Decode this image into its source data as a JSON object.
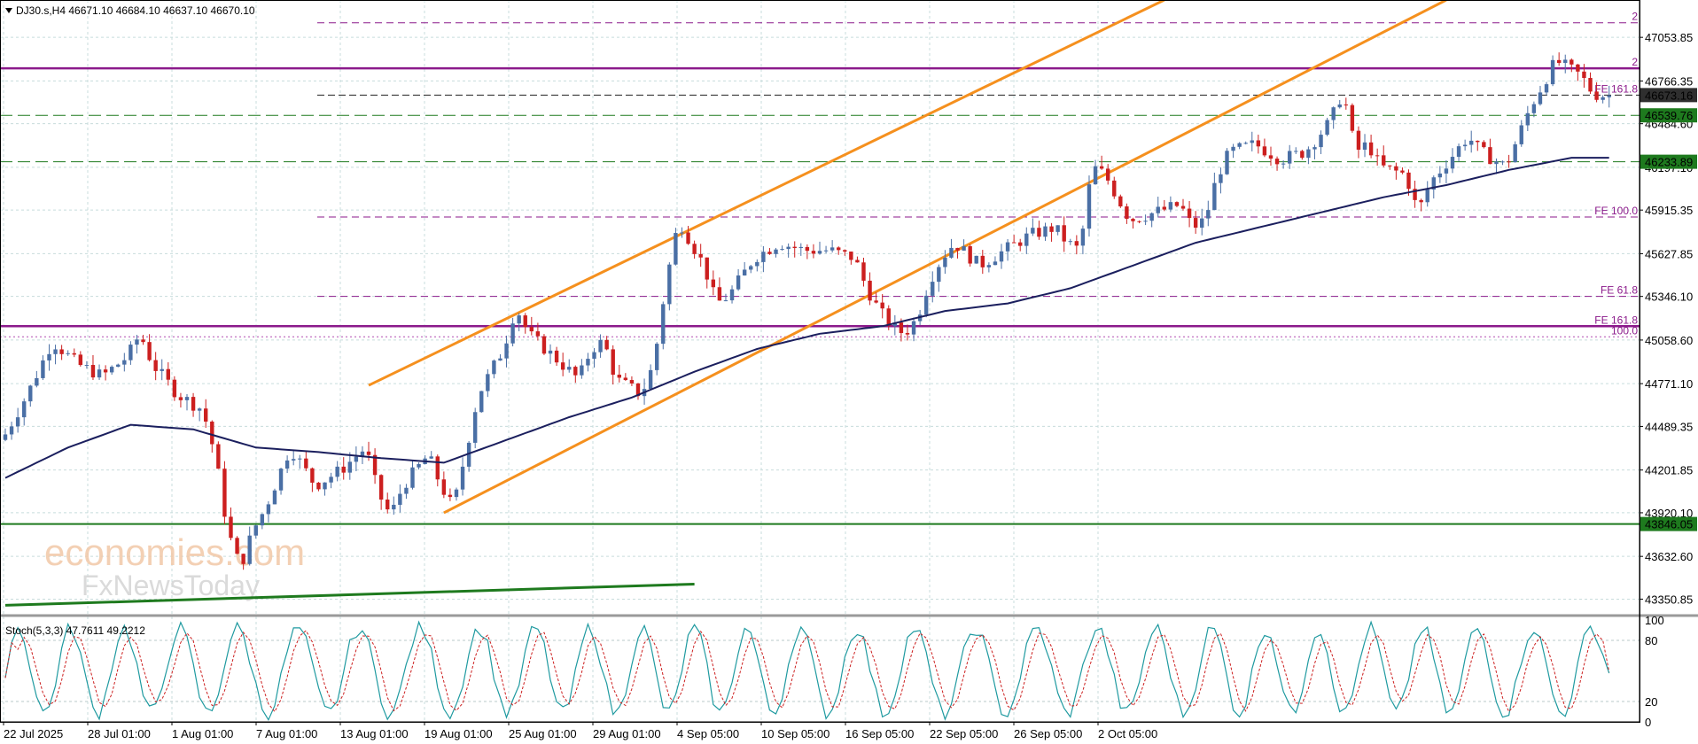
{
  "chart_data": [
    {
      "type": "candlestick",
      "title": "DJ30.s,H4 46671.10 46684.10 46637.10 46670.10",
      "symbol": "DJ30.s",
      "timeframe": "H4",
      "ohlc_header": {
        "open": 46671.1,
        "high": 46684.1,
        "low": 46637.1,
        "close": 46670.1
      },
      "colors": {
        "up": "#4a6fa5",
        "down": "#cc1f1f",
        "ma": "#1b1f5e",
        "channel": "#f5901e",
        "support": "#1e7a1e",
        "fib": "#8b1a8b",
        "grid": "#c8dcdc"
      },
      "ylim": [
        43260,
        47300
      ],
      "y_ticks": [
        "47053.85",
        "46766.35",
        "46484.60",
        "46197.10",
        "45915.35",
        "45627.85",
        "45346.10",
        "45058.60",
        "44771.10",
        "44489.35",
        "44201.85",
        "43920.10",
        "43632.60",
        "43350.85"
      ],
      "x_ticks": [
        "22 Jul 2025",
        "28 Jul 01:00",
        "1 Aug 01:00",
        "7 Aug 01:00",
        "13 Aug 01:00",
        "19 Aug 01:00",
        "25 Aug 01:00",
        "29 Aug 01:00",
        "4 Sep 05:00",
        "10 Sep 05:00",
        "16 Sep 05:00",
        "22 Sep 05:00",
        "26 Sep 05:00",
        "2 Oct 05:00"
      ],
      "price_path": [
        [
          0,
          44400
        ],
        [
          4,
          44700
        ],
        [
          8,
          45050
        ],
        [
          12,
          44900
        ],
        [
          16,
          44820
        ],
        [
          20,
          44950
        ],
        [
          22,
          45100
        ],
        [
          24,
          44900
        ],
        [
          28,
          44700
        ],
        [
          32,
          44600
        ],
        [
          34,
          44300
        ],
        [
          36,
          43800
        ],
        [
          38,
          43560
        ],
        [
          40,
          43800
        ],
        [
          42,
          43950
        ],
        [
          46,
          44350
        ],
        [
          50,
          44100
        ],
        [
          54,
          44200
        ],
        [
          58,
          44350
        ],
        [
          60,
          44050
        ],
        [
          62,
          43900
        ],
        [
          64,
          44100
        ],
        [
          68,
          44300
        ],
        [
          70,
          44100
        ],
        [
          72,
          43950
        ],
        [
          76,
          44700
        ],
        [
          80,
          45000
        ],
        [
          82,
          45280
        ],
        [
          84,
          45100
        ],
        [
          88,
          44950
        ],
        [
          92,
          44800
        ],
        [
          94,
          45000
        ],
        [
          96,
          45050
        ],
        [
          98,
          44800
        ],
        [
          100,
          44750
        ],
        [
          102,
          44700
        ],
        [
          104,
          44900
        ],
        [
          106,
          45450
        ],
        [
          108,
          45850
        ],
        [
          110,
          45700
        ],
        [
          112,
          45550
        ],
        [
          114,
          45300
        ],
        [
          116,
          45350
        ],
        [
          120,
          45600
        ],
        [
          124,
          45700
        ],
        [
          128,
          45650
        ],
        [
          132,
          45650
        ],
        [
          136,
          45600
        ],
        [
          138,
          45400
        ],
        [
          140,
          45250
        ],
        [
          142,
          45150
        ],
        [
          144,
          45100
        ],
        [
          146,
          45200
        ],
        [
          148,
          45450
        ],
        [
          150,
          45600
        ],
        [
          152,
          45700
        ],
        [
          156,
          45550
        ],
        [
          160,
          45650
        ],
        [
          164,
          45750
        ],
        [
          168,
          45800
        ],
        [
          170,
          45700
        ],
        [
          172,
          45650
        ],
        [
          174,
          46200
        ],
        [
          176,
          46150
        ],
        [
          178,
          46000
        ],
        [
          180,
          45850
        ],
        [
          184,
          45900
        ],
        [
          188,
          45950
        ],
        [
          190,
          45800
        ],
        [
          192,
          45850
        ],
        [
          194,
          46150
        ],
        [
          196,
          46300
        ],
        [
          200,
          46350
        ],
        [
          204,
          46250
        ],
        [
          208,
          46300
        ],
        [
          212,
          46500
        ],
        [
          214,
          46700
        ],
        [
          216,
          46300
        ],
        [
          218,
          46350
        ],
        [
          220,
          46200
        ],
        [
          224,
          46150
        ],
        [
          226,
          45900
        ],
        [
          228,
          46100
        ],
        [
          232,
          46300
        ],
        [
          234,
          46400
        ],
        [
          236,
          46300
        ],
        [
          238,
          46250
        ],
        [
          240,
          46200
        ],
        [
          242,
          46400
        ],
        [
          244,
          46600
        ],
        [
          246,
          46750
        ],
        [
          248,
          46900
        ],
        [
          250,
          46850
        ],
        [
          252,
          46800
        ],
        [
          254,
          46680
        ],
        [
          256,
          46670
        ]
      ],
      "moving_average": [
        [
          0,
          44150
        ],
        [
          10,
          44350
        ],
        [
          20,
          44500
        ],
        [
          30,
          44470
        ],
        [
          40,
          44350
        ],
        [
          50,
          44320
        ],
        [
          60,
          44280
        ],
        [
          70,
          44250
        ],
        [
          80,
          44400
        ],
        [
          90,
          44550
        ],
        [
          100,
          44680
        ],
        [
          110,
          44850
        ],
        [
          120,
          45000
        ],
        [
          130,
          45100
        ],
        [
          140,
          45150
        ],
        [
          150,
          45250
        ],
        [
          160,
          45300
        ],
        [
          170,
          45400
        ],
        [
          180,
          45550
        ],
        [
          190,
          45700
        ],
        [
          200,
          45800
        ],
        [
          210,
          45900
        ],
        [
          220,
          46000
        ],
        [
          230,
          46080
        ],
        [
          240,
          46180
        ],
        [
          250,
          46260
        ]
      ],
      "hlines": [
        {
          "price": 47150.0,
          "style": "purple-dashed",
          "right_text": "2"
        },
        {
          "price": 46850.0,
          "style": "purple-solid",
          "right_text": "2"
        },
        {
          "price": 46673.16,
          "style": "black-dashed",
          "right_text": "FE 161.8",
          "box": "46673.16"
        },
        {
          "price": 46539.76,
          "style": "green-dashed",
          "box": "46539.76"
        },
        {
          "price": 46233.89,
          "style": "green-dashed",
          "box": "46233.89"
        },
        {
          "price": 45870.0,
          "style": "purple-dashed-short",
          "right_text": "FE 100.0"
        },
        {
          "price": 45346.1,
          "style": "purple-dashed-short",
          "right_text": "FE 61.8"
        },
        {
          "price": 45150.0,
          "style": "purple-solid",
          "right_text": "FE 161.8"
        },
        {
          "price": 45080.0,
          "style": "purple-dotted",
          "right_text": "100.0"
        },
        {
          "price": 43846.05,
          "style": "green-solid",
          "box": "43846.05"
        }
      ],
      "channel": [
        {
          "from": [
            58,
            44760
          ],
          "to": [
            185,
            47300
          ]
        },
        {
          "from": [
            70,
            43920
          ],
          "to": [
            230,
            47300
          ]
        }
      ],
      "trend_support": {
        "from": [
          0,
          43310
        ],
        "to": [
          110,
          43450
        ]
      },
      "watermark": [
        "economies.com",
        "FxNewsToday"
      ]
    },
    {
      "type": "line",
      "title": "Stoch(5,3,3) 47.7611 49.2212",
      "indicator": "Stoch(5,3,3)",
      "main_value": 47.7611,
      "signal_value": 49.2212,
      "ylim": [
        0,
        100
      ],
      "y_ticks": [
        "100",
        "80",
        "20",
        "0"
      ],
      "colors": {
        "main": "#1f9aa0",
        "signal": "#cc1f1f"
      },
      "approx_cycle_bars": 9
    }
  ]
}
